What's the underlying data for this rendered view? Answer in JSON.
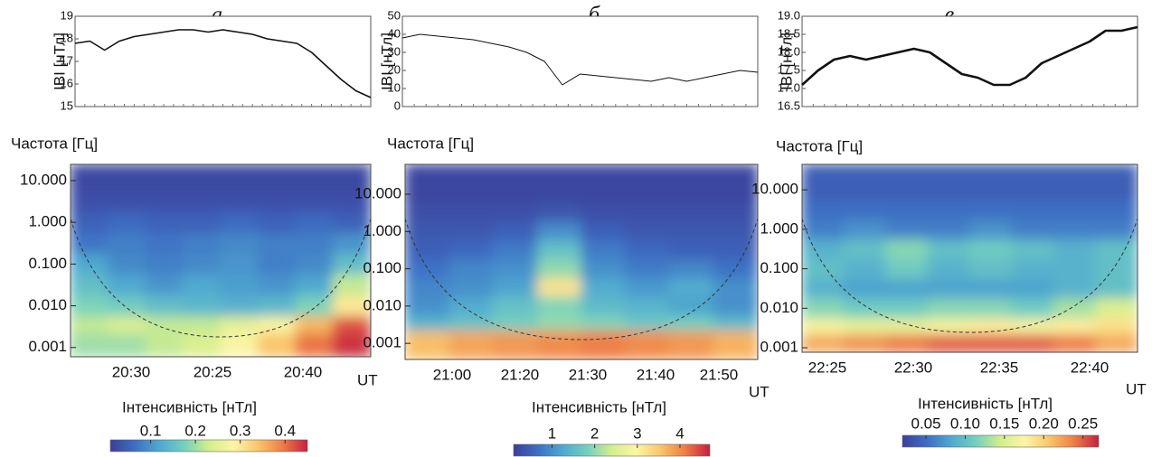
{
  "chart_data": [
    {
      "label": "а",
      "field": {
        "type": "line",
        "ylabel": "IBI [нТл]",
        "ylim": [
          15,
          19
        ],
        "yticks": [
          15,
          16,
          17,
          18,
          19
        ],
        "color": "#111111",
        "values": [
          17.8,
          17.9,
          17.5,
          17.9,
          18.1,
          18.2,
          18.3,
          18.4,
          18.4,
          18.3,
          18.4,
          18.3,
          18.2,
          18.0,
          17.9,
          17.8,
          17.4,
          16.8,
          16.2,
          15.7,
          15.4
        ]
      },
      "spectrum": {
        "type": "heatmap",
        "ylabel": "Частота [Гц]",
        "xlabel": "UT",
        "log_y": true,
        "ylim": [
          0.0006,
          24.5
        ],
        "yticks": [
          {
            "value": 10,
            "label": "10.000"
          },
          {
            "value": 1,
            "label": "1.000"
          },
          {
            "value": 0.1,
            "label": "0.100"
          },
          {
            "value": 0.01,
            "label": "0.010"
          },
          {
            "value": 0.001,
            "label": "0.001"
          }
        ],
        "xticks": [
          "20:30",
          "20:25",
          "20:40"
        ],
        "frequencies": [
          10,
          3,
          1,
          0.3,
          0.1,
          0.03,
          0.01,
          0.003,
          0.0015
        ],
        "matrix": [
          [
            0.02,
            0.02,
            0.02,
            0.02,
            0.02,
            0.02,
            0.02,
            0.02
          ],
          [
            0.03,
            0.03,
            0.03,
            0.03,
            0.03,
            0.03,
            0.03,
            0.03
          ],
          [
            0.05,
            0.06,
            0.05,
            0.05,
            0.06,
            0.05,
            0.06,
            0.05
          ],
          [
            0.07,
            0.08,
            0.07,
            0.08,
            0.09,
            0.08,
            0.08,
            0.1
          ],
          [
            0.12,
            0.09,
            0.08,
            0.09,
            0.1,
            0.08,
            0.09,
            0.15
          ],
          [
            0.15,
            0.12,
            0.1,
            0.12,
            0.11,
            0.1,
            0.12,
            0.22
          ],
          [
            0.18,
            0.17,
            0.15,
            0.14,
            0.13,
            0.14,
            0.18,
            0.3
          ],
          [
            0.22,
            0.24,
            0.22,
            0.22,
            0.25,
            0.28,
            0.35,
            0.42
          ],
          [
            0.2,
            0.2,
            0.22,
            0.24,
            0.28,
            0.34,
            0.4,
            0.44
          ]
        ],
        "colorbar": {
          "title": "Інтенсивність [нТл]",
          "clim": [
            0.01,
            0.45
          ],
          "ticks": [
            0.1,
            0.2,
            0.3,
            0.4
          ]
        }
      }
    },
    {
      "label": "б",
      "field": {
        "type": "line",
        "ylabel": "IBI [нТл]",
        "ylim": [
          0,
          50
        ],
        "yticks": [
          0,
          10,
          20,
          30,
          40,
          50
        ],
        "color": "#111111",
        "values": [
          38,
          40,
          39,
          38,
          37,
          35,
          33,
          30,
          25,
          12,
          18,
          17,
          16,
          15,
          14,
          16,
          14,
          16,
          18,
          20,
          19
        ]
      },
      "spectrum": {
        "type": "heatmap",
        "ylabel": "Частота [Гц]",
        "xlabel": "UT",
        "log_y": true,
        "ylim": [
          0.00037,
          63
        ],
        "yticks": [
          {
            "value": 10,
            "label": "10.000"
          },
          {
            "value": 1,
            "label": "1.000"
          },
          {
            "value": 0.1,
            "label": "0.100"
          },
          {
            "value": 0.01,
            "label": "0.010"
          },
          {
            "value": 0.001,
            "label": "0.001"
          }
        ],
        "xticks": [
          "21:00",
          "21:20",
          "21:30",
          "21:40",
          "21:50"
        ],
        "frequencies": [
          10,
          3,
          1,
          0.3,
          0.1,
          0.03,
          0.01,
          0.003,
          0.0015
        ],
        "matrix": [
          [
            0.2,
            0.2,
            0.2,
            0.2,
            0.2,
            0.2,
            0.2,
            0.2
          ],
          [
            0.3,
            0.3,
            0.3,
            0.4,
            0.3,
            0.3,
            0.3,
            0.3
          ],
          [
            0.4,
            0.4,
            0.5,
            1.0,
            0.5,
            0.4,
            0.4,
            0.4
          ],
          [
            0.5,
            0.6,
            0.8,
            1.6,
            0.8,
            0.6,
            0.5,
            0.5
          ],
          [
            0.7,
            0.9,
            1.0,
            2.0,
            1.0,
            0.8,
            0.9,
            0.7
          ],
          [
            0.9,
            1.0,
            1.2,
            3.2,
            1.3,
            1.1,
            1.3,
            1.0
          ],
          [
            1.0,
            1.3,
            1.6,
            1.9,
            1.5,
            1.4,
            1.2,
            1.0
          ],
          [
            1.4,
            1.6,
            1.8,
            2.0,
            1.9,
            1.7,
            1.8,
            1.5
          ],
          [
            3.6,
            3.8,
            3.9,
            4.0,
            4.1,
            4.0,
            3.9,
            3.7
          ]
        ],
        "colorbar": {
          "title": "Інтенсивність [нТл]",
          "clim": [
            0.1,
            4.7
          ],
          "ticks": [
            1,
            2,
            3,
            4
          ]
        }
      }
    },
    {
      "label": "в",
      "field": {
        "type": "line",
        "ylabel": "IBI [нТл]",
        "ylim": [
          16.5,
          19
        ],
        "yticks": [
          16.5,
          {
            "value": 17,
            "label": "17.0"
          },
          17.5,
          {
            "value": 18,
            "label": "18.0"
          },
          18.5,
          {
            "value": 19,
            "label": "19.0"
          }
        ],
        "color": "#111111",
        "values": [
          17.1,
          17.5,
          17.8,
          17.9,
          17.8,
          17.9,
          18.0,
          18.1,
          18.0,
          17.7,
          17.4,
          17.3,
          17.1,
          17.1,
          17.3,
          17.7,
          17.9,
          18.1,
          18.3,
          18.6,
          18.6,
          18.7
        ]
      },
      "spectrum": {
        "type": "heatmap",
        "ylabel": "Частота [Гц]",
        "xlabel": "UT",
        "log_y": true,
        "ylim": [
          0.00077,
          44
        ],
        "yticks": [
          {
            "value": 10,
            "label": "10.000"
          },
          {
            "value": 1,
            "label": "1.000"
          },
          {
            "value": 0.1,
            "label": "0.100"
          },
          {
            "value": 0.01,
            "label": "0.010"
          },
          {
            "value": 0.001,
            "label": "0.001"
          }
        ],
        "xticks": [
          "22:25",
          "22:30",
          "22:35",
          "22:40"
        ],
        "frequencies": [
          10,
          3,
          1,
          0.3,
          0.1,
          0.03,
          0.01,
          0.003,
          0.0015
        ],
        "matrix": [
          [
            0.04,
            0.04,
            0.04,
            0.04,
            0.04,
            0.04,
            0.04,
            0.04
          ],
          [
            0.05,
            0.05,
            0.05,
            0.05,
            0.05,
            0.05,
            0.05,
            0.05
          ],
          [
            0.06,
            0.07,
            0.06,
            0.06,
            0.07,
            0.06,
            0.06,
            0.06
          ],
          [
            0.09,
            0.1,
            0.12,
            0.1,
            0.11,
            0.1,
            0.09,
            0.1
          ],
          [
            0.1,
            0.09,
            0.11,
            0.09,
            0.1,
            0.09,
            0.09,
            0.1
          ],
          [
            0.09,
            0.08,
            0.08,
            0.08,
            0.08,
            0.08,
            0.09,
            0.1
          ],
          [
            0.12,
            0.11,
            0.11,
            0.12,
            0.12,
            0.11,
            0.13,
            0.15
          ],
          [
            0.17,
            0.16,
            0.16,
            0.17,
            0.18,
            0.17,
            0.18,
            0.19
          ],
          [
            0.22,
            0.23,
            0.24,
            0.25,
            0.25,
            0.25,
            0.24,
            0.22
          ]
        ],
        "colorbar": {
          "title": "Інтенсивність [нТл]",
          "clim": [
            0.02,
            0.27
          ],
          "ticks": [
            {
              "value": 0.05,
              "label": "0.05"
            },
            {
              "value": 0.1,
              "label": "0.10"
            },
            {
              "value": 0.15,
              "label": "0.15"
            },
            {
              "value": 0.2,
              "label": "0.20"
            },
            {
              "value": 0.25,
              "label": "0.25"
            }
          ]
        }
      }
    }
  ]
}
